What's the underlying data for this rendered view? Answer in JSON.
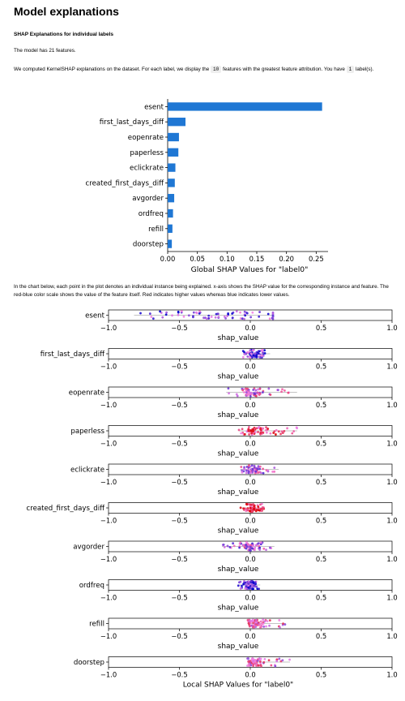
{
  "header": {
    "title": "Model explanations",
    "section_title": "SHAP Explanations for individual labels",
    "features_note": "The model has 21 features.",
    "intro_before": "We computed KernelSHAP explanations on the dataset. For each label, we display the",
    "top_k": "10",
    "intro_middle": "features with the greatest feature attribution. You have",
    "label_count": "1",
    "intro_after": "label(s).",
    "local_note": "In the chart below, each point in the plot denotes an individual instance being explained. x-axis shows the SHAP value for the corresponding instance and feature. The red-blue color scale shows the value of the feature itself. Red indicates higher values whereas blue indicates lower values."
  },
  "chart_data": [
    {
      "type": "bar",
      "orientation": "horizontal",
      "categories": [
        "esent",
        "first_last_days_diff",
        "eopenrate",
        "paperless",
        "eclickrate",
        "created_first_days_diff",
        "avgorder",
        "ordfreq",
        "refill",
        "doorstep"
      ],
      "values": [
        0.26,
        0.03,
        0.019,
        0.018,
        0.013,
        0.012,
        0.011,
        0.009,
        0.008,
        0.007
      ],
      "xlim": [
        0,
        0.27
      ],
      "xticks": [
        "0.00",
        "0.05",
        "0.10",
        "0.15",
        "0.20",
        "0.25"
      ],
      "xtick_values": [
        0,
        0.05,
        0.1,
        0.15,
        0.2,
        0.25
      ],
      "xlabel": "Global SHAP Values for \"label0\"",
      "bar_color": "#1f77d4"
    },
    {
      "type": "scatter",
      "subtype": "beeswarm",
      "xlim": [
        -1.0,
        1.0
      ],
      "xticks": [
        "−1.0",
        "−0.5",
        "0.0",
        "0.5",
        "1.0"
      ],
      "xtick_values": [
        -1.0,
        -0.5,
        0.0,
        0.5,
        1.0
      ],
      "xlabel_each": "shap_value",
      "xlabel_last": "Local SHAP Values for \"label0\"",
      "color_low": "#0000cc",
      "color_high": "#dd0000",
      "features": [
        {
          "name": "esent",
          "min": -0.82,
          "max": 0.16,
          "center": -0.2,
          "spread": 0.32,
          "bias": -0.55
        },
        {
          "name": "first_last_days_diff",
          "min": -0.05,
          "max": 0.14,
          "center": 0.03,
          "spread": 0.04,
          "bias": -0.6
        },
        {
          "name": "eopenrate",
          "min": -0.17,
          "max": 0.33,
          "center": 0.02,
          "spread": 0.07,
          "bias": 0.0
        },
        {
          "name": "paperless",
          "min": -0.08,
          "max": 0.33,
          "center": 0.03,
          "spread": 0.06,
          "bias": 0.55
        },
        {
          "name": "eclickrate",
          "min": -0.07,
          "max": 0.2,
          "center": 0.02,
          "spread": 0.04,
          "bias": -0.1
        },
        {
          "name": "created_first_days_diff",
          "min": -0.07,
          "max": 0.1,
          "center": 0.01,
          "spread": 0.03,
          "bias": 0.7
        },
        {
          "name": "avgorder",
          "min": -0.2,
          "max": 0.17,
          "center": 0.0,
          "spread": 0.05,
          "bias": -0.2
        },
        {
          "name": "ordfreq",
          "min": -0.09,
          "max": 0.07,
          "center": 0.0,
          "spread": 0.03,
          "bias": -0.7
        },
        {
          "name": "refill",
          "min": -0.02,
          "max": 0.25,
          "center": 0.03,
          "spread": 0.04,
          "bias": 0.2
        },
        {
          "name": "doorstep",
          "min": -0.02,
          "max": 0.28,
          "center": 0.03,
          "spread": 0.04,
          "bias": 0.1
        }
      ]
    }
  ]
}
